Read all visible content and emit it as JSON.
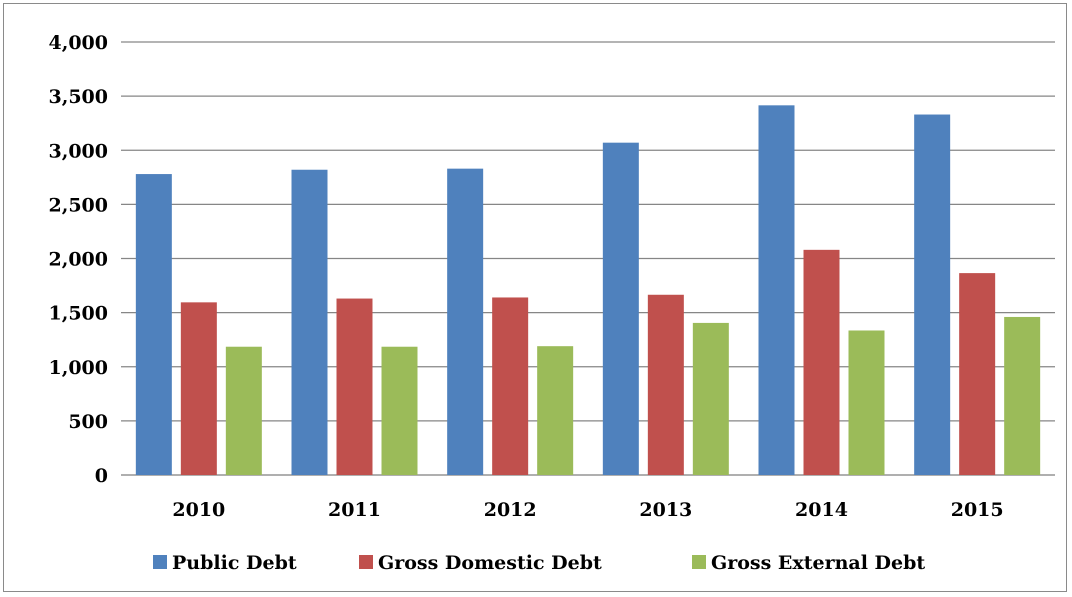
{
  "chart_data": {
    "type": "bar",
    "title": "",
    "xlabel": "",
    "ylabel": "",
    "categories": [
      "2010",
      "2011",
      "2012",
      "2013",
      "2014",
      "2015"
    ],
    "series": [
      {
        "name": "Public Debt",
        "color": "#4F81BD",
        "values": [
          2780,
          2820,
          2830,
          3070,
          3415,
          3330
        ]
      },
      {
        "name": "Gross Domestic Debt",
        "color": "#C0504D",
        "values": [
          1595,
          1630,
          1640,
          1665,
          2080,
          1865
        ]
      },
      {
        "name": "Gross External Debt",
        "color": "#9BBB59",
        "values": [
          1185,
          1185,
          1190,
          1405,
          1335,
          1460
        ]
      }
    ],
    "ylim": [
      0,
      4000
    ],
    "yticks": [
      0,
      500,
      1000,
      1500,
      2000,
      2500,
      3000,
      3500,
      4000
    ],
    "ytick_labels": [
      "0",
      "500",
      "1,000",
      "1,500",
      "2,000",
      "2,500",
      "3,000",
      "3,500",
      "4,000"
    ],
    "grid": true,
    "legend_position": "bottom"
  }
}
